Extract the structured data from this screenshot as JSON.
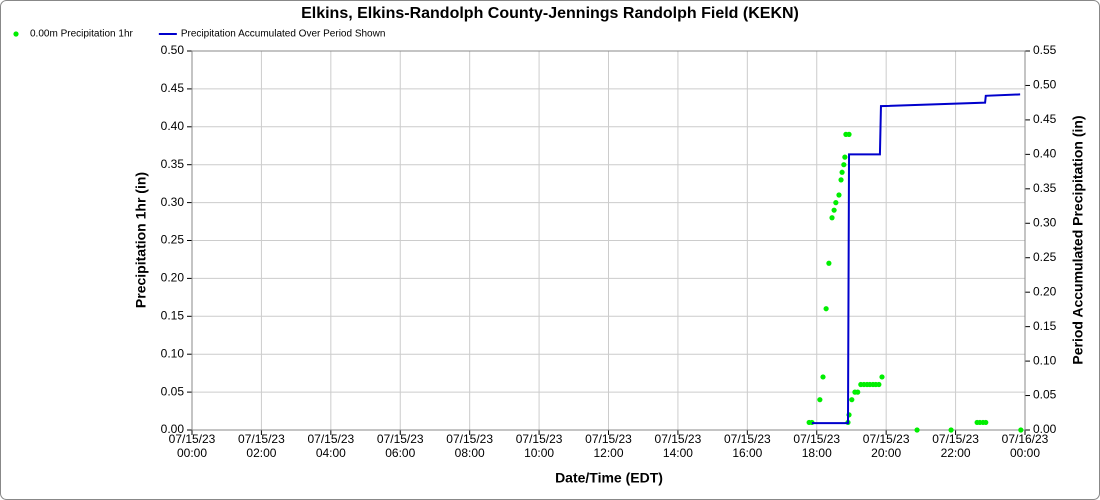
{
  "chart_data": {
    "type": "combo",
    "title": "Elkins, Elkins-Randolph County-Jennings Randolph Field (KEKN)",
    "xlabel": "Date/Time (EDT)",
    "ylabel": "Precipitation 1hr (in)",
    "y2label": "Period Accumulated Precipitation (in)",
    "xlim": [
      0,
      24
    ],
    "xticks": [
      {
        "value": 0,
        "label": "07/15/23 00:00"
      },
      {
        "value": 2,
        "label": "07/15/23 02:00"
      },
      {
        "value": 4,
        "label": "07/15/23 04:00"
      },
      {
        "value": 6,
        "label": "07/15/23 06:00"
      },
      {
        "value": 8,
        "label": "07/15/23 08:00"
      },
      {
        "value": 10,
        "label": "07/15/23 10:00"
      },
      {
        "value": 12,
        "label": "07/15/23 12:00"
      },
      {
        "value": 14,
        "label": "07/15/23 14:00"
      },
      {
        "value": 16,
        "label": "07/15/23 16:00"
      },
      {
        "value": 18,
        "label": "07/15/23 18:00"
      },
      {
        "value": 20,
        "label": "07/15/23 20:00"
      },
      {
        "value": 22,
        "label": "07/15/23 22:00"
      },
      {
        "value": 24,
        "label": "07/16/23 00:00"
      }
    ],
    "ylim": [
      0,
      0.5
    ],
    "yticks": [
      {
        "value": 0,
        "label": "0.00"
      },
      {
        "value": 0.05,
        "label": "0.05"
      },
      {
        "value": 0.1,
        "label": "0.10"
      },
      {
        "value": 0.15,
        "label": "0.15"
      },
      {
        "value": 0.2,
        "label": "0.20"
      },
      {
        "value": 0.25,
        "label": "0.25"
      },
      {
        "value": 0.3,
        "label": "0.30"
      },
      {
        "value": 0.35,
        "label": "0.35"
      },
      {
        "value": 0.4,
        "label": "0.40"
      },
      {
        "value": 0.45,
        "label": "0.45"
      },
      {
        "value": 0.5,
        "label": "0.50"
      }
    ],
    "y2lim": [
      0,
      0.55
    ],
    "y2ticks": [
      {
        "value": 0,
        "label": "0.00"
      },
      {
        "value": 0.05,
        "label": "0.05"
      },
      {
        "value": 0.1,
        "label": "0.10"
      },
      {
        "value": 0.15,
        "label": "0.15"
      },
      {
        "value": 0.2,
        "label": "0.20"
      },
      {
        "value": 0.25,
        "label": "0.25"
      },
      {
        "value": 0.3,
        "label": "0.30"
      },
      {
        "value": 0.35,
        "label": "0.35"
      },
      {
        "value": 0.4,
        "label": "0.40"
      },
      {
        "value": 0.45,
        "label": "0.45"
      },
      {
        "value": 0.5,
        "label": "0.50"
      },
      {
        "value": 0.55,
        "label": "0.55"
      }
    ],
    "grid": true,
    "legend": "top-left",
    "series": [
      {
        "name": "0.00m Precipitation 1hr",
        "type": "scatter",
        "color": "#00ee00",
        "x": [
          17.78,
          17.86,
          18.09,
          18.18,
          18.27,
          18.35,
          18.44,
          18.5,
          18.55,
          18.64,
          18.7,
          18.73,
          18.78,
          18.81,
          18.84,
          18.93,
          18.93,
          18.9,
          19.01,
          19.1,
          19.18,
          19.27,
          19.36,
          19.45,
          19.53,
          19.62,
          19.7,
          19.79,
          19.88,
          20.89,
          21.87,
          22.62,
          22.7,
          22.79,
          22.87,
          23.88
        ],
        "values": [
          0.01,
          0.01,
          0.04,
          0.07,
          0.16,
          0.22,
          0.28,
          0.29,
          0.3,
          0.31,
          0.33,
          0.34,
          0.35,
          0.36,
          0.39,
          0.39,
          0.02,
          0.01,
          0.04,
          0.05,
          0.05,
          0.06,
          0.06,
          0.06,
          0.06,
          0.06,
          0.06,
          0.06,
          0.07,
          0,
          0,
          0.01,
          0.01,
          0.01,
          0.01,
          0
        ]
      },
      {
        "name": "Precipitation Accumulated Over Period Shown",
        "type": "line",
        "axis": "y2",
        "color": "#0000cc",
        "x": [
          17.86,
          18.9,
          18.93,
          19.82,
          19.85,
          22.85,
          22.87,
          23.86
        ],
        "values": [
          0.01,
          0.01,
          0.4,
          0.4,
          0.47,
          0.475,
          0.485,
          0.487
        ]
      }
    ]
  }
}
